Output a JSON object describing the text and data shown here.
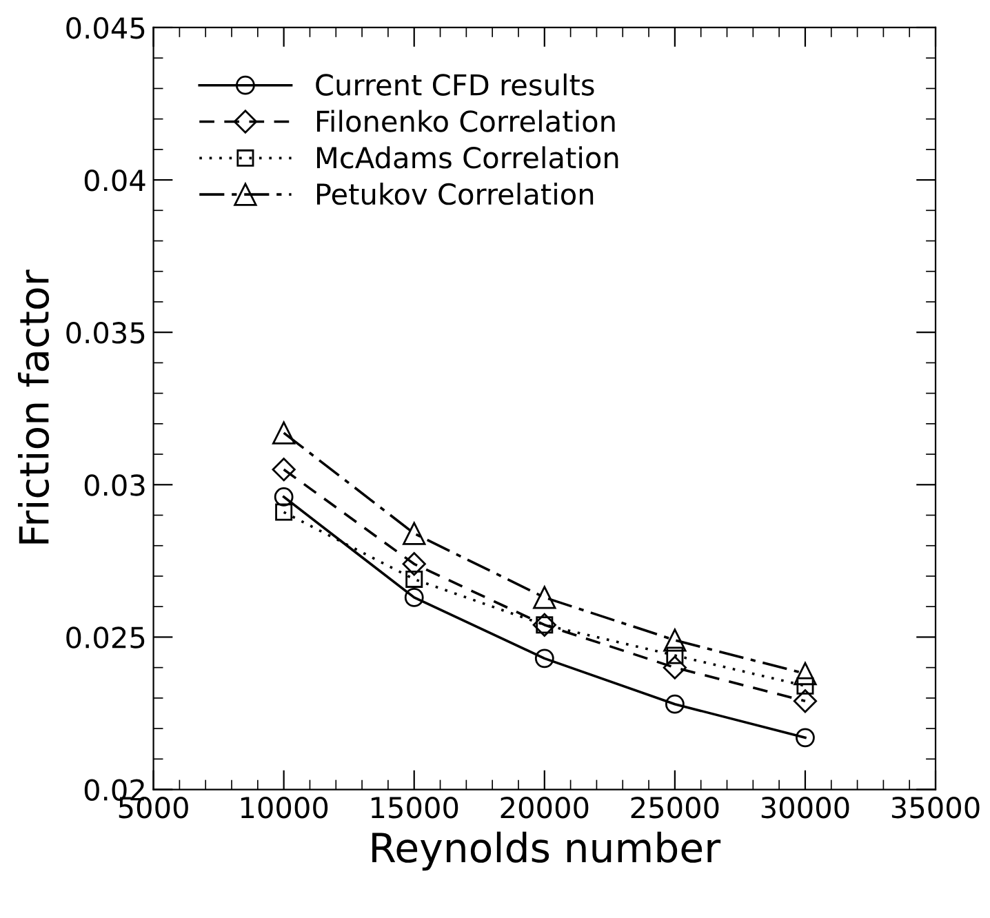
{
  "chart_data": {
    "type": "line",
    "xlabel": "Reynolds number",
    "ylabel": "Friction factor",
    "x": [
      10000,
      15000,
      20000,
      25000,
      30000
    ],
    "series": [
      {
        "name": "Current CFD results",
        "color": "#000000",
        "marker": "circle",
        "line_style": "solid",
        "values": [
          0.0296,
          0.0263,
          0.0243,
          0.0228,
          0.0217
        ]
      },
      {
        "name": "Filonenko Correlation",
        "color": "#000000",
        "marker": "diamond",
        "line_style": "dashed",
        "values": [
          0.0305,
          0.0274,
          0.0254,
          0.024,
          0.0229
        ]
      },
      {
        "name": "McAdams Correlation",
        "color": "#000000",
        "marker": "square",
        "line_style": "dotted",
        "values": [
          0.0291,
          0.0269,
          0.0254,
          0.0244,
          0.0234
        ]
      },
      {
        "name": "Petukov Correlation",
        "color": "#000000",
        "marker": "triangle",
        "line_style": "dashdot",
        "values": [
          0.0317,
          0.0284,
          0.0263,
          0.0249,
          0.0238
        ]
      }
    ],
    "xlim": [
      5000,
      35000
    ],
    "xticks": [
      5000,
      10000,
      15000,
      20000,
      25000,
      30000,
      35000
    ],
    "ylim": [
      0.02,
      0.045
    ],
    "yticks": [
      0.02,
      0.025,
      0.03,
      0.035,
      0.04,
      0.045
    ],
    "grid": false,
    "legend": "top left"
  }
}
